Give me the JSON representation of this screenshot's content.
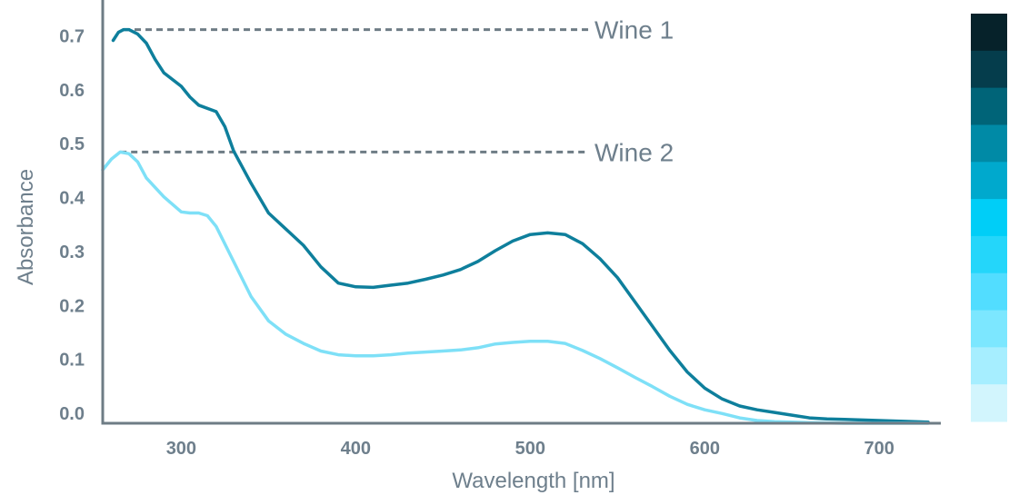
{
  "chart_data": {
    "type": "line",
    "title": "",
    "xlabel": "Wavelength [nm]",
    "ylabel": "Absorbance",
    "xlim": [
      255,
      728
    ],
    "ylim": [
      0,
      0.785
    ],
    "x_ticks": [
      300,
      400,
      500,
      600,
      700
    ],
    "x_tick_labels": [
      "300",
      "400",
      "500",
      "600",
      "700"
    ],
    "y_ticks": [
      0.0,
      0.1,
      0.2,
      0.3,
      0.4,
      0.5,
      0.6,
      0.7
    ],
    "y_tick_labels": [
      "0.0",
      "0.1",
      "0.2",
      "0.3",
      "0.4",
      "0.5",
      "0.6",
      "0.7"
    ],
    "grid": false,
    "series": [
      {
        "name": "Wine 1",
        "color": "#0e7f9c",
        "x": [
          261,
          264,
          267,
          270,
          275,
          280,
          285,
          290,
          300,
          305,
          310,
          320,
          325,
          330,
          340,
          350,
          360,
          370,
          380,
          390,
          400,
          410,
          420,
          430,
          440,
          450,
          460,
          470,
          480,
          490,
          500,
          510,
          520,
          530,
          540,
          550,
          560,
          570,
          580,
          590,
          600,
          610,
          620,
          630,
          640,
          650,
          660,
          670,
          680,
          690,
          700,
          710,
          720,
          728
        ],
        "values": [
          0.71,
          0.725,
          0.73,
          0.73,
          0.722,
          0.705,
          0.675,
          0.65,
          0.625,
          0.605,
          0.59,
          0.578,
          0.55,
          0.505,
          0.445,
          0.39,
          0.36,
          0.33,
          0.29,
          0.26,
          0.253,
          0.252,
          0.256,
          0.26,
          0.267,
          0.275,
          0.285,
          0.3,
          0.32,
          0.338,
          0.35,
          0.353,
          0.35,
          0.333,
          0.305,
          0.27,
          0.225,
          0.18,
          0.135,
          0.095,
          0.065,
          0.045,
          0.032,
          0.025,
          0.02,
          0.015,
          0.01,
          0.008,
          0.007,
          0.006,
          0.005,
          0.004,
          0.003,
          0.002
        ]
      },
      {
        "name": "Wine 2",
        "color": "#7ee0f7",
        "x": [
          255,
          260,
          265,
          270,
          275,
          280,
          290,
          300,
          305,
          310,
          315,
          320,
          330,
          340,
          350,
          360,
          370,
          380,
          390,
          400,
          410,
          420,
          430,
          440,
          450,
          460,
          470,
          480,
          490,
          500,
          510,
          520,
          530,
          540,
          550,
          560,
          570,
          580,
          590,
          600,
          610,
          620,
          630,
          640,
          650,
          660,
          680,
          700,
          728
        ],
        "values": [
          0.47,
          0.49,
          0.503,
          0.5,
          0.485,
          0.455,
          0.42,
          0.392,
          0.39,
          0.39,
          0.385,
          0.365,
          0.3,
          0.235,
          0.19,
          0.165,
          0.148,
          0.134,
          0.127,
          0.125,
          0.125,
          0.127,
          0.13,
          0.132,
          0.134,
          0.136,
          0.14,
          0.147,
          0.15,
          0.152,
          0.152,
          0.148,
          0.135,
          0.12,
          0.103,
          0.085,
          0.068,
          0.05,
          0.035,
          0.025,
          0.018,
          0.01,
          0.005,
          0.003,
          0.002,
          0.001,
          0.0,
          0.0,
          0.0
        ]
      }
    ],
    "annotations": [
      {
        "text": "Wine 1",
        "series": "Wine 1",
        "y": 0.73
      },
      {
        "text": "Wine 2",
        "series": "Wine 2",
        "y": 0.503
      }
    ],
    "color_scale": [
      "#06222a",
      "#053d4c",
      "#006478",
      "#008aa6",
      "#00a9cd",
      "#00cef7",
      "#24d6fa",
      "#52ddff",
      "#7ce7ff",
      "#a6eeff",
      "#d2f5fd"
    ],
    "axis_color": "#6e7c85",
    "text_color": "#6e7f8c"
  }
}
